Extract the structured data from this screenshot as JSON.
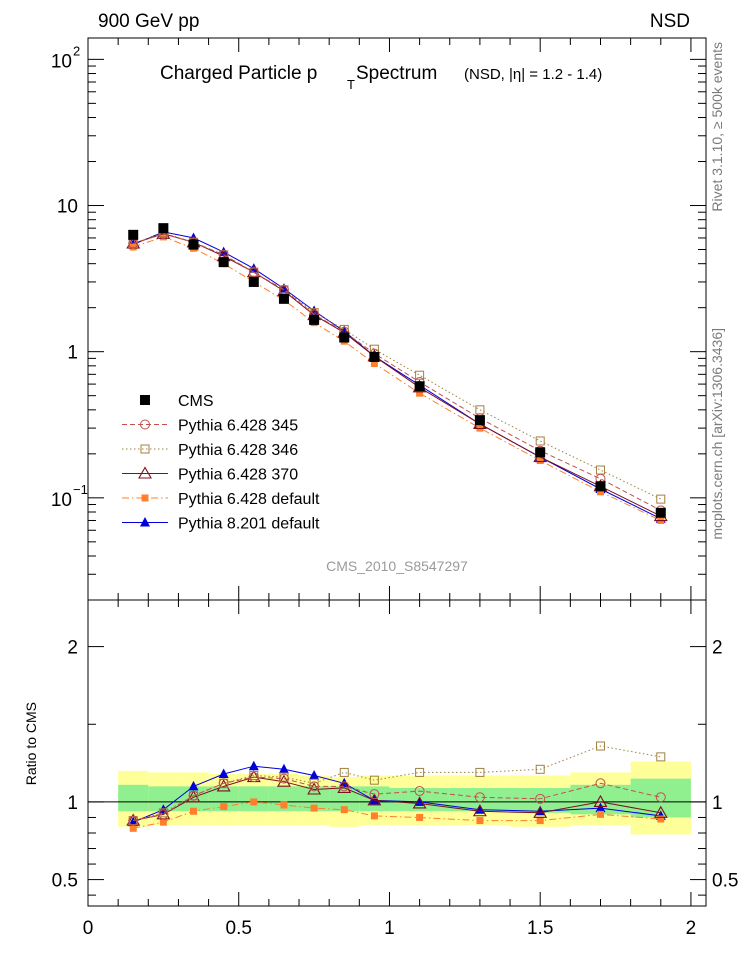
{
  "header": {
    "left": "900 GeV pp",
    "right": "NSD"
  },
  "side_labels": {
    "top": "Rivet 3.1.10, ≥ 500k events",
    "bottom": "mcplots.cern.ch [arXiv:1306.3436]"
  },
  "colors": {
    "cms": "#000000",
    "p345": "#c0504d",
    "p346": "#a08040",
    "p370": "#7a1020",
    "pdef": "#ff7f2a",
    "p8": "#0000dd",
    "band_inner": "#90f090",
    "band_outer": "#ffff99"
  },
  "chart_data": [
    {
      "type": "scatter",
      "title": "Charged Particle p T Spectrum",
      "title_parts": {
        "main": "Charged Particle p",
        "sub": "T",
        "rest": " Spectrum",
        "note": "(NSD, |η| = 1.2 - 1.4)"
      },
      "watermark": "CMS_2010_S8547297",
      "yscale": "log",
      "ylim": [
        0.02,
        140
      ],
      "xlim": [
        0,
        2.05
      ],
      "grid": false,
      "legend_position": "middle-left",
      "x": [
        0.15,
        0.25,
        0.35,
        0.45,
        0.55,
        0.65,
        0.75,
        0.85,
        0.95,
        1.1,
        1.3,
        1.5,
        1.7,
        1.9
      ],
      "y_ticks": [
        {
          "value": 0.1,
          "base": "10",
          "exp": "−1"
        },
        {
          "value": 1,
          "base": "1",
          "exp": ""
        },
        {
          "value": 10,
          "base": "10",
          "exp": ""
        },
        {
          "value": 100,
          "base": "10",
          "exp": "2"
        }
      ],
      "series": [
        {
          "name": "CMS",
          "key": "cms",
          "marker": "square-filled",
          "line": "none",
          "values": [
            6.3,
            7.0,
            5.4,
            4.1,
            3.0,
            2.3,
            1.65,
            1.25,
            0.92,
            0.58,
            0.34,
            0.205,
            0.12,
            0.079
          ]
        },
        {
          "name": "Pythia 6.428 345",
          "key": "p345",
          "marker": "circle-open",
          "line": "dashed",
          "values": [
            5.5,
            6.4,
            5.6,
            4.6,
            3.5,
            2.65,
            1.8,
            1.37,
            0.97,
            0.62,
            0.35,
            0.21,
            0.135,
            0.082
          ]
        },
        {
          "name": "Pythia 6.428 346",
          "key": "p346",
          "marker": "square-open",
          "line": "dotted",
          "values": [
            5.5,
            6.5,
            5.6,
            4.6,
            3.5,
            2.65,
            1.85,
            1.42,
            1.04,
            0.69,
            0.4,
            0.245,
            0.155,
            0.098
          ]
        },
        {
          "name": "Pythia 6.428 370",
          "key": "p370",
          "marker": "triangle-open",
          "line": "solid",
          "values": [
            5.5,
            6.4,
            5.6,
            4.5,
            3.5,
            2.6,
            1.78,
            1.35,
            0.93,
            0.57,
            0.32,
            0.19,
            0.12,
            0.075
          ]
        },
        {
          "name": "Pythia 6.428 default",
          "key": "pdef",
          "marker": "square-filled-small",
          "line": "dashdot",
          "values": [
            5.2,
            6.1,
            5.1,
            4.0,
            3.0,
            2.25,
            1.58,
            1.18,
            0.83,
            0.52,
            0.3,
            0.18,
            0.11,
            0.07
          ]
        },
        {
          "name": "Pythia 8.201 default",
          "key": "p8",
          "marker": "triangle-filled",
          "line": "solid",
          "values": [
            5.4,
            6.6,
            6.0,
            4.8,
            3.7,
            2.7,
            1.9,
            1.38,
            0.93,
            0.59,
            0.32,
            0.19,
            0.115,
            0.072
          ]
        }
      ]
    },
    {
      "type": "scatter",
      "ylabel": "Ratio to CMS",
      "yscale": "linear",
      "ylim": [
        0.33,
        2.3
      ],
      "xlim": [
        0,
        2.05
      ],
      "reference_line": 1,
      "x_ticks": [
        0,
        0.5,
        1,
        1.5,
        2
      ],
      "x_tick_labels": [
        "0",
        "0.5",
        "1",
        "1.5",
        "2"
      ],
      "y_ticks": [
        0.5,
        1,
        2
      ],
      "y_tick_labels": [
        "0.5",
        "1",
        "2"
      ],
      "x": [
        0.15,
        0.25,
        0.35,
        0.45,
        0.55,
        0.65,
        0.75,
        0.85,
        0.95,
        1.1,
        1.3,
        1.5,
        1.7,
        1.9
      ],
      "bins": [
        {
          "lo": 0.1,
          "hi": 0.2,
          "inner": [
            0.94,
            1.11
          ],
          "outer": [
            0.84,
            1.2
          ]
        },
        {
          "lo": 0.2,
          "hi": 0.3,
          "inner": [
            0.94,
            1.1
          ],
          "outer": [
            0.85,
            1.19
          ]
        },
        {
          "lo": 0.3,
          "hi": 0.4,
          "inner": [
            0.94,
            1.1
          ],
          "outer": [
            0.85,
            1.19
          ]
        },
        {
          "lo": 0.4,
          "hi": 0.5,
          "inner": [
            0.94,
            1.1
          ],
          "outer": [
            0.85,
            1.18
          ]
        },
        {
          "lo": 0.5,
          "hi": 0.6,
          "inner": [
            0.94,
            1.1
          ],
          "outer": [
            0.85,
            1.18
          ]
        },
        {
          "lo": 0.6,
          "hi": 0.7,
          "inner": [
            0.94,
            1.1
          ],
          "outer": [
            0.85,
            1.18
          ]
        },
        {
          "lo": 0.7,
          "hi": 0.8,
          "inner": [
            0.94,
            1.1
          ],
          "outer": [
            0.85,
            1.17
          ]
        },
        {
          "lo": 0.8,
          "hi": 0.9,
          "inner": [
            0.94,
            1.1
          ],
          "outer": [
            0.84,
            1.16
          ]
        },
        {
          "lo": 0.9,
          "hi": 1.0,
          "inner": [
            0.94,
            1.1
          ],
          "outer": [
            0.85,
            1.17
          ]
        },
        {
          "lo": 1.0,
          "hi": 1.2,
          "inner": [
            0.94,
            1.09
          ],
          "outer": [
            0.85,
            1.17
          ]
        },
        {
          "lo": 1.2,
          "hi": 1.4,
          "inner": [
            0.94,
            1.09
          ],
          "outer": [
            0.85,
            1.17
          ]
        },
        {
          "lo": 1.4,
          "hi": 1.6,
          "inner": [
            0.93,
            1.09
          ],
          "outer": [
            0.84,
            1.17
          ]
        },
        {
          "lo": 1.6,
          "hi": 1.8,
          "inner": [
            0.92,
            1.11
          ],
          "outer": [
            0.85,
            1.19
          ]
        },
        {
          "lo": 1.8,
          "hi": 2.0,
          "inner": [
            0.9,
            1.15
          ],
          "outer": [
            0.79,
            1.26
          ]
        }
      ],
      "series": [
        {
          "name": "Pythia 6.428 345",
          "key": "p345",
          "values": [
            0.88,
            0.92,
            1.04,
            1.12,
            1.16,
            1.15,
            1.1,
            1.1,
            1.05,
            1.07,
            1.03,
            1.02,
            1.12,
            1.03
          ]
        },
        {
          "name": "Pythia 6.428 346",
          "key": "p346",
          "values": [
            0.88,
            0.93,
            1.04,
            1.12,
            1.17,
            1.16,
            1.12,
            1.19,
            1.14,
            1.19,
            1.19,
            1.21,
            1.36,
            1.29
          ]
        },
        {
          "name": "Pythia 6.428 370",
          "key": "p370",
          "values": [
            0.88,
            0.92,
            1.03,
            1.1,
            1.16,
            1.13,
            1.08,
            1.09,
            1.01,
            0.99,
            0.94,
            0.93,
            1.0,
            0.93
          ]
        },
        {
          "name": "Pythia 6.428 default",
          "key": "pdef",
          "values": [
            0.83,
            0.87,
            0.94,
            0.97,
            1.0,
            0.98,
            0.96,
            0.95,
            0.91,
            0.9,
            0.88,
            0.88,
            0.92,
            0.89
          ]
        },
        {
          "name": "Pythia 8.201 default",
          "key": "p8",
          "values": [
            0.87,
            0.95,
            1.1,
            1.18,
            1.23,
            1.21,
            1.17,
            1.12,
            1.01,
            1.0,
            0.95,
            0.94,
            0.96,
            0.91
          ]
        }
      ]
    }
  ]
}
